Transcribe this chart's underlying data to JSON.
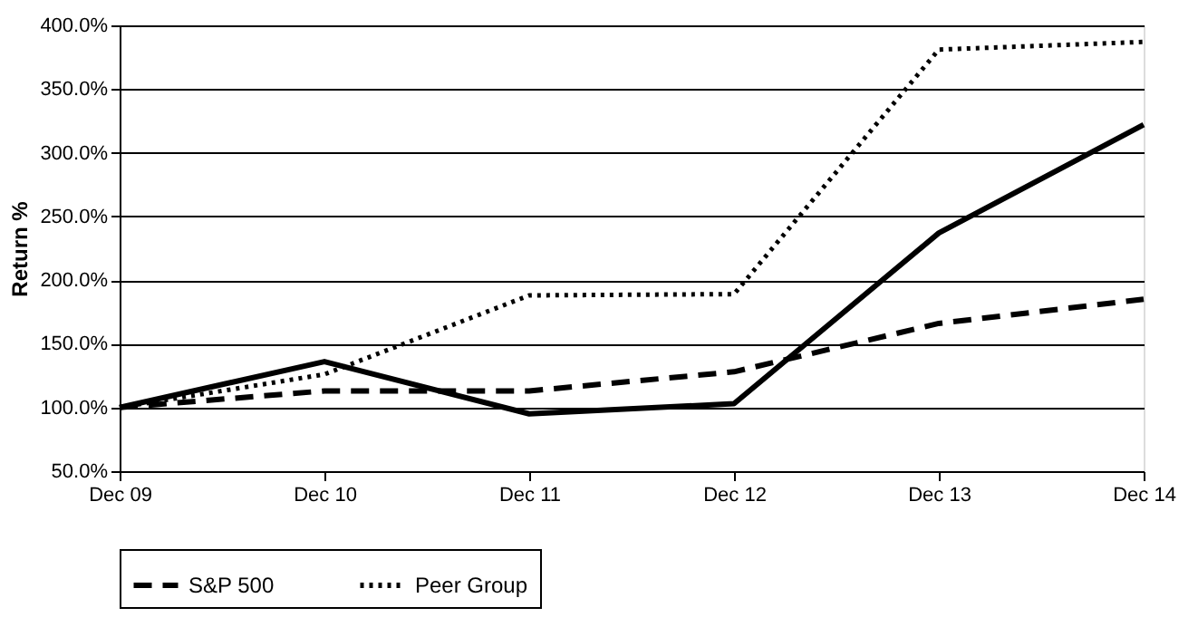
{
  "chart_data": {
    "type": "line",
    "ylabel": "Return %",
    "categories": [
      "Dec 09",
      "Dec 10",
      "Dec 11",
      "Dec 12",
      "Dec 13",
      "Dec 14"
    ],
    "series": [
      {
        "color": "#000000",
        "line_style": "solid",
        "values": [
          100,
          136,
          95,
          103,
          237,
          322
        ]
      },
      {
        "name": "S&P 500",
        "color": "#000000",
        "line_style": "dashed",
        "values": [
          100,
          113,
          113,
          128,
          166,
          185
        ]
      },
      {
        "name": "Peer Group",
        "color": "#000000",
        "line_style": "dotted",
        "values": [
          100,
          126,
          188,
          189,
          381,
          387
        ]
      }
    ],
    "ylim": [
      50,
      400
    ],
    "yticks": [
      {
        "value": 50,
        "label": "50.0%"
      },
      {
        "value": 100,
        "label": "100.0%"
      },
      {
        "value": 150,
        "label": "150.0%"
      },
      {
        "value": 200,
        "label": "200.0%"
      },
      {
        "value": 250,
        "label": "250.0%"
      },
      {
        "value": 300,
        "label": "300.0%"
      },
      {
        "value": 350,
        "label": "350.0%"
      },
      {
        "value": 400,
        "label": "400.0%"
      }
    ],
    "grid": "y",
    "legend": "bottom",
    "marker": "none"
  }
}
